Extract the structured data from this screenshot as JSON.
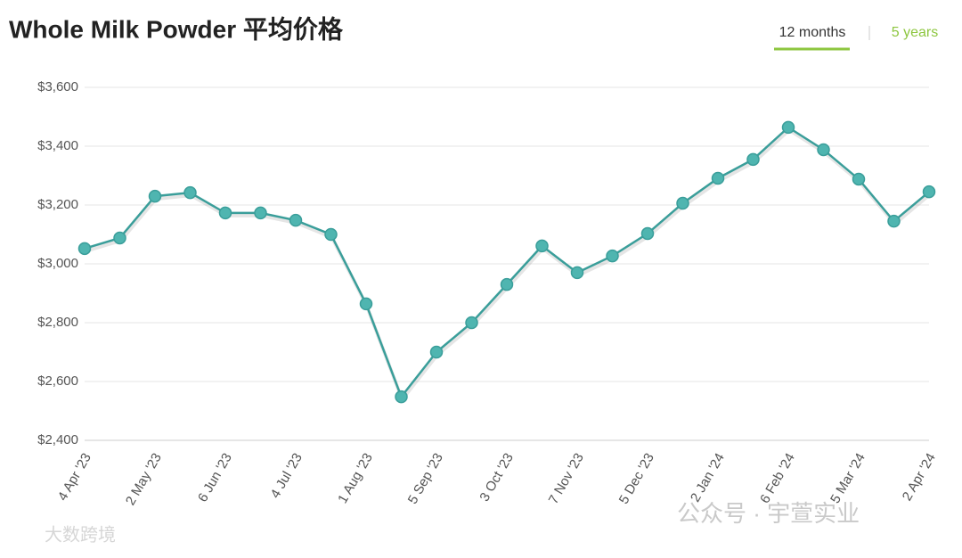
{
  "chart_data": {
    "type": "line",
    "title": "Whole Milk Powder 平均价格",
    "tabs": [
      "12 months",
      "5 years"
    ],
    "categories": [
      "4 Apr '23",
      null,
      "2 May '23",
      null,
      "6 Jun '23",
      null,
      "4 Jul '23",
      null,
      "1 Aug '23",
      null,
      "5 Sep '23",
      null,
      "3 Oct '23",
      null,
      "7 Nov '23",
      null,
      "5 Dec '23",
      null,
      "2 Jan '24",
      null,
      "6 Feb '24",
      null,
      "5 Mar '24",
      null,
      "2 Apr '24"
    ],
    "series": [
      {
        "name": "Whole Milk Powder",
        "color": "#3a9e9a",
        "values": [
          3052,
          3088,
          3230,
          3242,
          3173,
          3173,
          3148,
          3100,
          2864,
          2548,
          2700,
          2800,
          2930,
          3061,
          2970,
          3027,
          3103,
          3206,
          3291,
          3355,
          3464,
          3388,
          3288,
          3145,
          3245
        ]
      }
    ],
    "ylim": [
      2400,
      3600
    ],
    "yticks": [
      {
        "value": 2400,
        "label": "$2,400"
      },
      {
        "value": 2600,
        "label": "$2,600"
      },
      {
        "value": 2800,
        "label": "$2,800"
      },
      {
        "value": 3000,
        "label": "$3,000"
      },
      {
        "value": 3200,
        "label": "$3,200"
      },
      {
        "value": 3400,
        "label": "$3,400"
      },
      {
        "value": 3600,
        "label": "$3,600"
      }
    ],
    "grid": true,
    "watermarks": [
      "公众号 · 宇萱实业",
      "大数跨境"
    ]
  }
}
